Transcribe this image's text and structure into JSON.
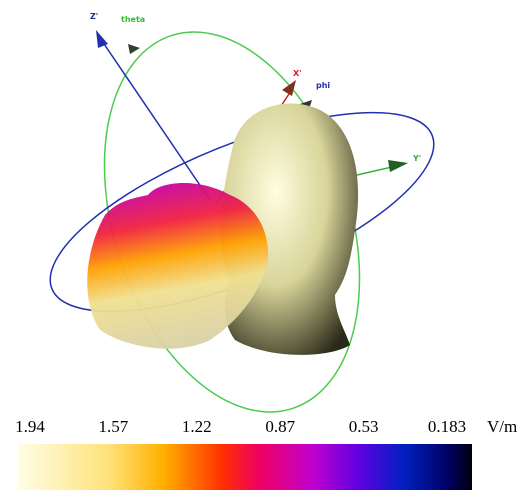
{
  "axes": {
    "z": "Z'",
    "theta": "theta",
    "x": "X'",
    "phi": "phi",
    "y": "Y'"
  },
  "colorbar": {
    "ticks": [
      "1.94",
      "1.57",
      "1.22",
      "0.87",
      "0.53",
      "0.183"
    ],
    "unit": "V/m"
  }
}
